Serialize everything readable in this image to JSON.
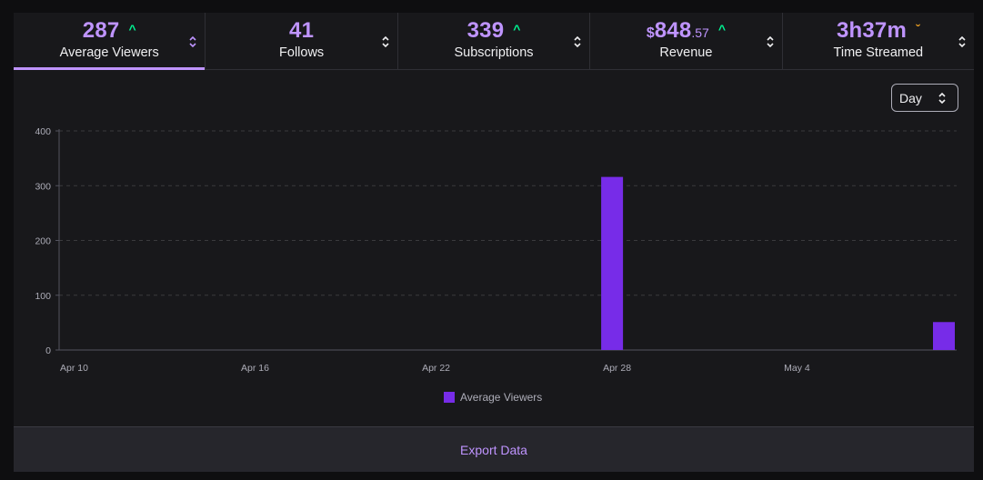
{
  "tabs": [
    {
      "value": "287",
      "trend": "up",
      "label": "Average Viewers"
    },
    {
      "value": "41",
      "trend": "",
      "label": "Follows"
    },
    {
      "value": "339",
      "trend": "up",
      "label": "Subscriptions"
    },
    {
      "value_prefix": "$",
      "value": "848",
      "value_suffix": ".57",
      "trend": "up",
      "label": "Revenue"
    },
    {
      "value": "3h37m",
      "trend": "down",
      "label": "Time Streamed"
    }
  ],
  "active_tab": "Average Viewers",
  "icons": {
    "trend_up": "chevron-up-icon",
    "trend_down": "chevron-down-icon",
    "sort": "sort-icon"
  },
  "colors": {
    "accent": "#bf94ff",
    "bar": "#772ce8",
    "up": "#00f593",
    "down": "#f6a623"
  },
  "range": {
    "selected": "Day"
  },
  "export_label": "Export Data",
  "chart_data": {
    "type": "bar",
    "x_start": "Apr 10",
    "x_end": "May 9",
    "xticks": [
      "Apr 10",
      "Apr 16",
      "Apr 22",
      "Apr 28",
      "May 4"
    ],
    "yticks": [
      0,
      100,
      200,
      300,
      400
    ],
    "ylim": [
      0,
      400
    ],
    "series": [
      {
        "name": "Average Viewers",
        "points": [
          {
            "x": "Apr 28",
            "y": 316
          },
          {
            "x": "May 9",
            "y": 51
          }
        ]
      }
    ],
    "grid": true,
    "legend": "bottom"
  }
}
